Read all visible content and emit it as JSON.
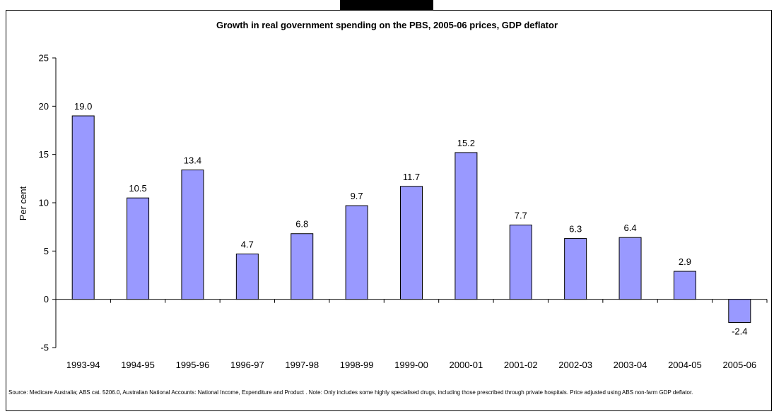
{
  "chart_data": {
    "type": "bar",
    "title": "Growth in real government spending on the PBS, 2005-06 prices, GDP deflator",
    "xlabel": "",
    "ylabel": "Per cent",
    "categories": [
      "1993-94",
      "1994-95",
      "1995-96",
      "1996-97",
      "1997-98",
      "1998-99",
      "1999-00",
      "2000-01",
      "2001-02",
      "2002-03",
      "2003-04",
      "2004-05",
      "2005-06"
    ],
    "values": [
      19.0,
      10.5,
      13.4,
      4.7,
      6.8,
      9.7,
      11.7,
      15.2,
      7.7,
      6.3,
      6.4,
      2.9,
      -2.4
    ],
    "data_labels": [
      "19.0",
      "10.5",
      "13.4",
      "4.7",
      "6.8",
      "9.7",
      "11.7",
      "15.2",
      "7.7",
      "6.3",
      "6.4",
      "2.9",
      "-2.4"
    ],
    "ylim": [
      -5,
      25
    ],
    "yticks": [
      -5,
      0,
      5,
      10,
      15,
      20,
      25
    ],
    "grid": false,
    "legend": "none",
    "bar_color": "#9999ff"
  },
  "footnote": "Source: Medicare Australia; ABS cat. 5206.0, Australian National Accounts: National Income, Expenditure and Product . Note: Only includes some highly specialised drugs, including those prescribed through private hospitals. Price adjusted using ABS non-farm GDP deflator."
}
